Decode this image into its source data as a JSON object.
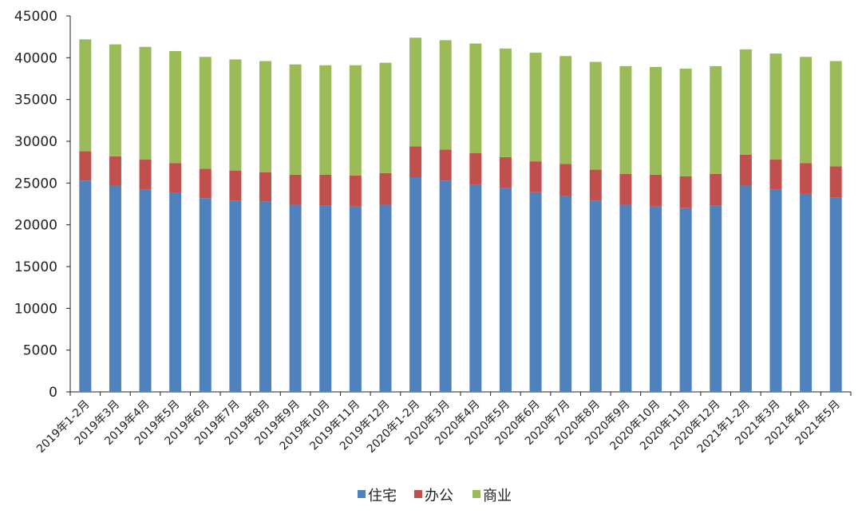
{
  "chart_data": {
    "type": "bar",
    "stacked": true,
    "categories": [
      "2019年1-2月",
      "2019年3月",
      "2019年4月",
      "2019年5月",
      "2019年6月",
      "2019年7月",
      "2019年8月",
      "2019年9月",
      "2019年10月",
      "2019年11月",
      "2019年12月",
      "2020年1-2月",
      "2020年3月",
      "2020年4月",
      "2020年5月",
      "2020年6月",
      "2020年7月",
      "2020年8月",
      "2020年9月",
      "2020年10月",
      "2020年11月",
      "2020年12月",
      "2021年1-2月",
      "2021年3月",
      "2021年4月",
      "2021年5月"
    ],
    "series": [
      {
        "name": "住宅",
        "color": "#4f81bd",
        "values": [
          25300,
          24700,
          24200,
          23800,
          23200,
          22900,
          22800,
          22400,
          22300,
          22200,
          22400,
          25700,
          25300,
          24800,
          24400,
          23900,
          23500,
          22900,
          22400,
          22200,
          22000,
          22300,
          24700,
          24200,
          23700,
          23300
        ]
      },
      {
        "name": "办公",
        "color": "#c0504d",
        "values": [
          3500,
          3500,
          3600,
          3600,
          3500,
          3600,
          3500,
          3600,
          3700,
          3700,
          3800,
          3700,
          3700,
          3800,
          3700,
          3700,
          3800,
          3700,
          3700,
          3800,
          3800,
          3800,
          3700,
          3600,
          3700,
          3700
        ]
      },
      {
        "name": "商业",
        "color": "#9bbb59",
        "values": [
          13400,
          13400,
          13500,
          13400,
          13400,
          13300,
          13300,
          13200,
          13100,
          13200,
          13200,
          13000,
          13100,
          13100,
          13000,
          13000,
          12900,
          12900,
          12900,
          12900,
          12900,
          12900,
          12600,
          12700,
          12700,
          12600
        ]
      }
    ],
    "yticks": [
      0,
      5000,
      10000,
      15000,
      20000,
      25000,
      30000,
      35000,
      40000,
      45000
    ],
    "ylim": [
      0,
      45000
    ],
    "legend_position": "bottom",
    "grid": false
  }
}
